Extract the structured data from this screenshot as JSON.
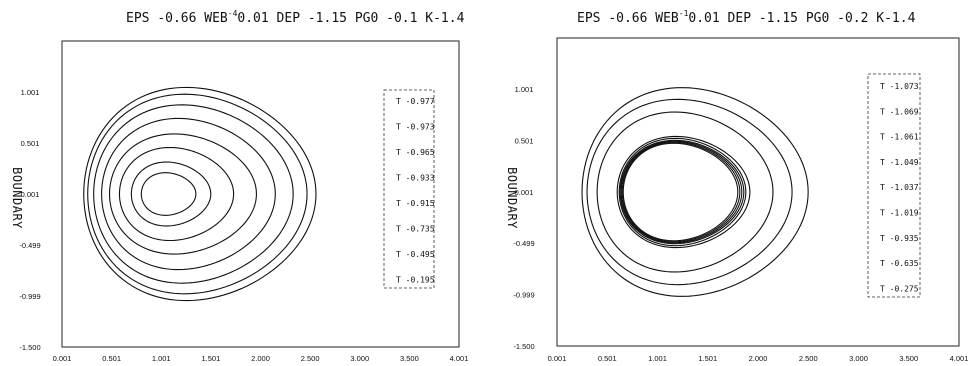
{
  "chart_data": [
    {
      "type": "line",
      "title": {
        "eps_label": "EPS",
        "eps_value": "-0.66",
        "web_label": "WEB",
        "web_exp": "-4",
        "web_value": "0.01",
        "dep_label": "DEP",
        "dep_value": "-1.15",
        "pg0_label": "PG0",
        "pg0_value": "-0.1",
        "k_label": "K",
        "k_value": "-1.4"
      },
      "ylabel": "BOUNDARY",
      "xlabel": "",
      "xlim": [
        0.001,
        4.001
      ],
      "ylim": [
        -1.5,
        1.5
      ],
      "x_ticks": [
        "0.001",
        "0.501",
        "1.001",
        "1.501",
        "2.000",
        "2.500",
        "3.000",
        "3.500",
        "4.001"
      ],
      "y_ticks": [
        "1.001",
        "0.501",
        "0.001",
        "-0.499",
        "-0.999",
        "-1.500"
      ],
      "grid": false,
      "legend_position": "right",
      "series": [
        {
          "name": "T -0.977",
          "shape": {
            "x_min": 0.8,
            "x_max": 1.35,
            "y_half": 0.22
          }
        },
        {
          "name": "T -0.973",
          "shape": {
            "x_min": 0.7,
            "x_max": 1.5,
            "y_half": 0.33
          }
        },
        {
          "name": "T -0.965",
          "shape": {
            "x_min": 0.58,
            "x_max": 1.73,
            "y_half": 0.48
          }
        },
        {
          "name": "T -0.933",
          "shape": {
            "x_min": 0.48,
            "x_max": 1.96,
            "y_half": 0.62
          }
        },
        {
          "name": "T -0.915",
          "shape": {
            "x_min": 0.4,
            "x_max": 2.15,
            "y_half": 0.78
          }
        },
        {
          "name": "T -0.735",
          "shape": {
            "x_min": 0.32,
            "x_max": 2.33,
            "y_half": 0.92
          }
        },
        {
          "name": "T -0.495",
          "shape": {
            "x_min": 0.26,
            "x_max": 2.47,
            "y_half": 1.03
          }
        },
        {
          "name": "T -0.195",
          "shape": {
            "x_min": 0.22,
            "x_max": 2.56,
            "y_half": 1.1
          }
        }
      ]
    },
    {
      "type": "line",
      "title": {
        "eps_label": "EPS",
        "eps_value": "-0.66",
        "web_label": "WEB",
        "web_exp": "-1",
        "web_value": "0.01",
        "dep_label": "DEP",
        "dep_value": "-1.15",
        "pg0_label": "PG0",
        "pg0_value": "-0.2",
        "k_label": "K",
        "k_value": "-1.4"
      },
      "ylabel": "BOUNDARY",
      "xlabel": "",
      "xlim": [
        0.001,
        4.001
      ],
      "ylim": [
        -1.5,
        1.5
      ],
      "x_ticks": [
        "0.001",
        "0.501",
        "1.001",
        "1.501",
        "2.000",
        "2.500",
        "3.000",
        "3.500",
        "4.001"
      ],
      "y_ticks": [
        "1.001",
        "0.501",
        "0.001",
        "-0.499",
        "-0.999",
        "-1.500"
      ],
      "grid": false,
      "legend_position": "right",
      "series": [
        {
          "name": "T -1.073",
          "shape": {
            "x_min": 0.66,
            "x_max": 1.8,
            "y_half": 0.5
          }
        },
        {
          "name": "T -1.069",
          "shape": {
            "x_min": 0.65,
            "x_max": 1.82,
            "y_half": 0.51
          }
        },
        {
          "name": "T -1.061",
          "shape": {
            "x_min": 0.64,
            "x_max": 1.84,
            "y_half": 0.52
          }
        },
        {
          "name": "T -1.049",
          "shape": {
            "x_min": 0.63,
            "x_max": 1.86,
            "y_half": 0.53
          }
        },
        {
          "name": "T -1.037",
          "shape": {
            "x_min": 0.62,
            "x_max": 1.88,
            "y_half": 0.55
          }
        },
        {
          "name": "T -1.019",
          "shape": {
            "x_min": 0.6,
            "x_max": 1.92,
            "y_half": 0.57
          }
        },
        {
          "name": "T -0.935",
          "shape": {
            "x_min": 0.4,
            "x_max": 2.15,
            "y_half": 0.82
          }
        },
        {
          "name": "T -0.635",
          "shape": {
            "x_min": 0.3,
            "x_max": 2.34,
            "y_half": 0.95
          }
        },
        {
          "name": "T -0.275",
          "shape": {
            "x_min": 0.25,
            "x_max": 2.5,
            "y_half": 1.07
          }
        }
      ]
    }
  ]
}
